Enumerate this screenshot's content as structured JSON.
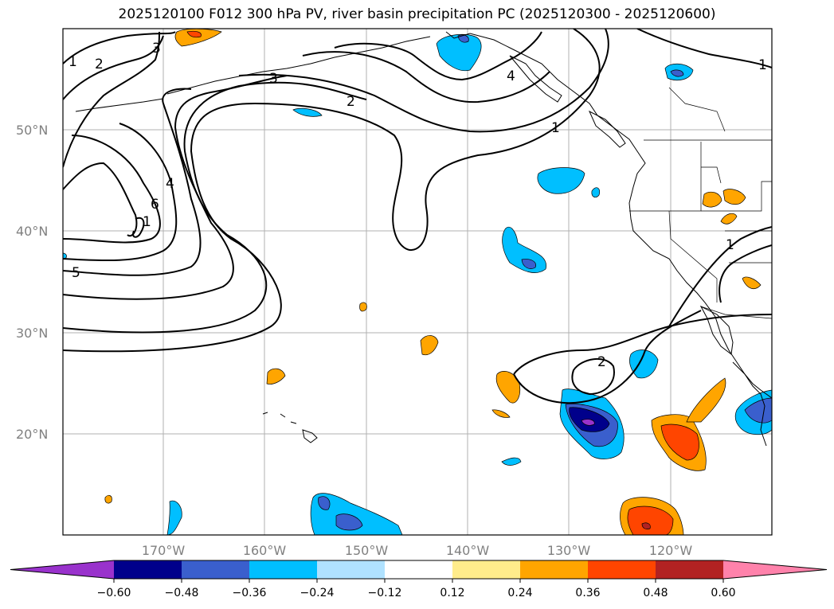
{
  "title": "2025120100 F012 300 hPa PV, river basin precipitation PC (2025120300 - 2025120600)",
  "lat_labels": [
    "50°N",
    "40°N",
    "30°N",
    "20°N"
  ],
  "lon_labels": [
    "170°W",
    "160°W",
    "150°W",
    "140°W",
    "130°W",
    "120°W"
  ],
  "colorbar": {
    "colors": [
      "#9932cc",
      "#00008b",
      "#3a5fcd",
      "#00bfff",
      "#b0e2ff",
      "#ffffff",
      "#ffec8b",
      "#ffa500",
      "#ff4500",
      "#b22222",
      "#ff82ab"
    ],
    "ticks": [
      "−0.60",
      "−0.48",
      "−0.36",
      "−0.24",
      "−0.12",
      "0.12",
      "0.24",
      "0.36",
      "0.48",
      "0.60"
    ]
  },
  "contour_labels": [
    "1",
    "2",
    "3",
    "3",
    "4",
    "2",
    "1",
    "4",
    "6",
    "1",
    "5",
    "2",
    "1",
    "1"
  ]
}
